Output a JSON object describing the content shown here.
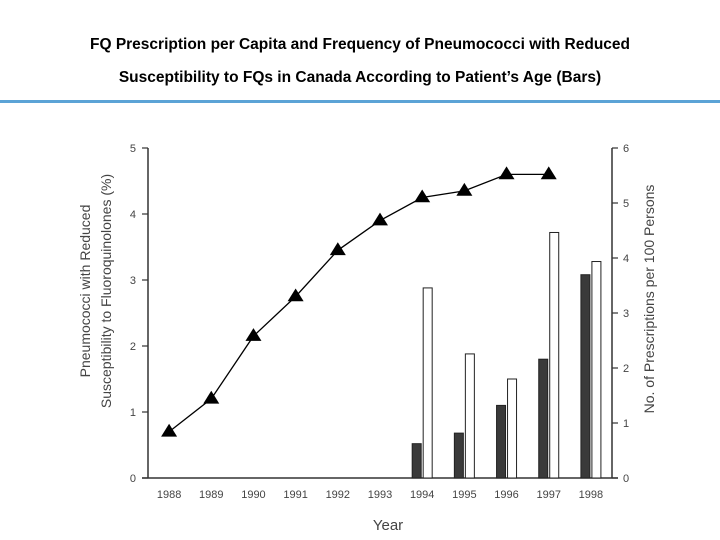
{
  "slide": {
    "title_line_1": "FQ Prescription per Capita and Frequency of Pneumococci with Reduced",
    "title_line_2": "Susceptibility to FQs in Canada According to Patient’s Age (Bars)",
    "rule_color": "#5ba3d6"
  },
  "chart_data": {
    "type": "bar",
    "categories": [
      "1988",
      "1989",
      "1990",
      "1991",
      "1992",
      "1993",
      "1994",
      "1995",
      "1996",
      "1997",
      "1998"
    ],
    "xlabel": "Year",
    "ylabel_left": [
      "Pneumococci with Reduced",
      "Susceptibility to Fluoroquinolones (%)"
    ],
    "ylabel_right": "No. of Prescriptions per 100 Persons",
    "ylim_left": [
      0,
      5
    ],
    "ylim_right": [
      0,
      6
    ],
    "yticks_left": [
      "0",
      "1",
      "2",
      "3",
      "4",
      "5"
    ],
    "yticks_right": [
      "0",
      "1",
      "2",
      "3",
      "4",
      "5",
      "6"
    ],
    "series": [
      {
        "type": "line",
        "marker": "triangle",
        "axis": "left",
        "color": "#000000",
        "values": [
          0.7,
          1.2,
          2.15,
          2.75,
          3.45,
          3.9,
          4.25,
          4.35,
          4.6,
          4.6,
          null
        ]
      },
      {
        "type": "bar",
        "axis": "left",
        "fill": "#3a3a3a",
        "values": [
          null,
          null,
          null,
          null,
          null,
          null,
          0.52,
          0.68,
          1.1,
          1.8,
          3.08
        ]
      },
      {
        "type": "bar",
        "axis": "left",
        "fill": "#ffffff",
        "values": [
          null,
          null,
          null,
          null,
          null,
          null,
          2.88,
          1.88,
          1.5,
          3.72,
          3.28
        ]
      }
    ],
    "grid": false
  }
}
